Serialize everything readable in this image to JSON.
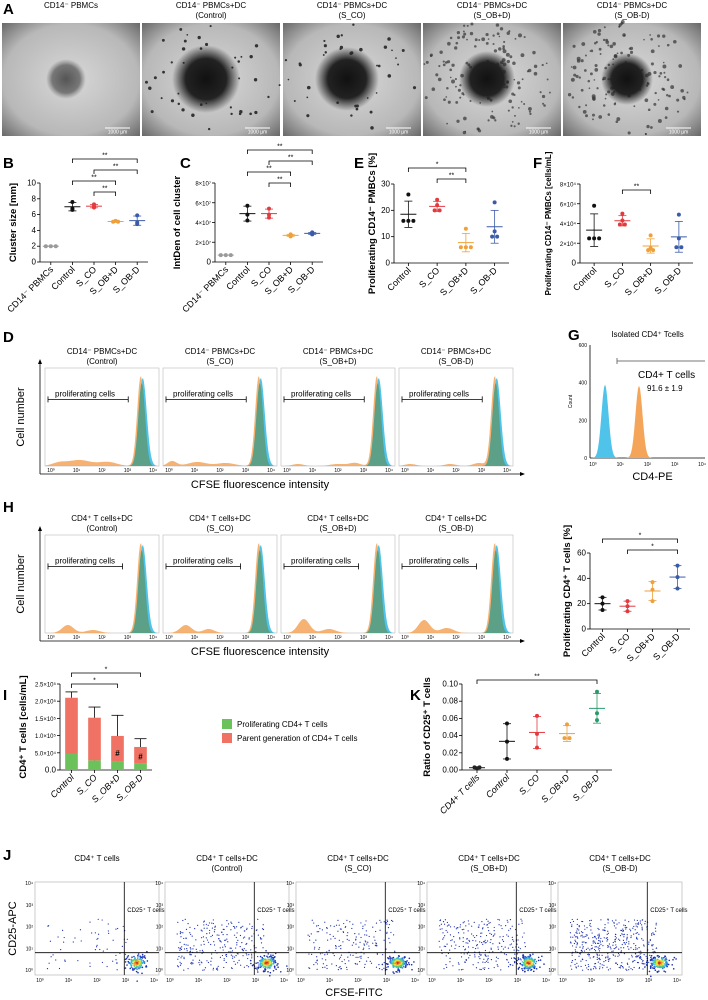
{
  "panels": {
    "A": {
      "label": "A",
      "images": [
        {
          "title": "CD14⁻ PBMCs",
          "subtitle": ""
        },
        {
          "title": "CD14⁻ PBMCs+DC",
          "subtitle": "(Control)"
        },
        {
          "title": "CD14⁻ PBMCs+DC",
          "subtitle": "(S_CO)"
        },
        {
          "title": "CD14⁻ PBMCs+DC",
          "subtitle": "(S_OB+D)"
        },
        {
          "title": "CD14⁻ PBMCs+DC",
          "subtitle": "(S_OB-D)"
        }
      ],
      "scale_bar": "1000 µm"
    },
    "D": {
      "label": "D",
      "ylabel": "Cell number",
      "xlabel": "CFSE fluorescence intensity",
      "gate_label": "proliferating cells",
      "histograms": [
        {
          "title": "CD14⁻ PBMCs+DC",
          "subtitle": "(Control)"
        },
        {
          "title": "CD14⁻ PBMCs+DC",
          "subtitle": "(S_CO)"
        },
        {
          "title": "CD14⁻ PBMCs+DC",
          "subtitle": "(S_OB+D)"
        },
        {
          "title": "CD14⁻ PBMCs+DC",
          "subtitle": "(S_OB-D)"
        }
      ]
    },
    "G": {
      "label": "G",
      "title": "Isolated CD4⁺ Tcells",
      "gate_label": "CD4+ T cells",
      "gate_value": "91.6 ± 1.9",
      "xlabel": "CD4-PE",
      "ylabel": "Count",
      "yticks": [
        "0",
        "200",
        "400",
        "600"
      ]
    },
    "H": {
      "label": "H",
      "ylabel": "Cell number",
      "xlabel": "CFSE fluorescence intensity",
      "gate_label": "proliferating cells",
      "histograms": [
        {
          "title": "CD4⁺ T cells+DC",
          "subtitle": "(Control)"
        },
        {
          "title": "CD4⁺ T cells+DC",
          "subtitle": "(S_CO)"
        },
        {
          "title": "CD4⁺ T cells+DC",
          "subtitle": "(S_OB+D)"
        },
        {
          "title": "CD4⁺ T cells+DC",
          "subtitle": "(S_OB-D)"
        }
      ]
    },
    "J": {
      "label": "J",
      "ylabel": "CD25-APC",
      "xlabel": "CFSE-FITC",
      "gate_label": "CD25⁺ T cells",
      "plots": [
        {
          "title": "CD4⁺ T cells",
          "subtitle": ""
        },
        {
          "title": "CD4⁺ T cells+DC",
          "subtitle": "(Control)"
        },
        {
          "title": "CD4⁺ T cells+DC",
          "subtitle": "(S_CO)"
        },
        {
          "title": "CD4⁺ T cells+DC",
          "subtitle": "(S_OB+D)"
        },
        {
          "title": "CD4⁺ T cells+DC",
          "subtitle": "(S_OB-D)"
        }
      ]
    },
    "log_ticks": [
      "10⁰",
      "10¹",
      "10²",
      "10³",
      "10⁴"
    ]
  },
  "colors": {
    "CD14⁻ PBMCs": "#9a9a9a",
    "CD4+ T cells": "#222222",
    "Control": "#111111",
    "S_CO": "#e23a3f",
    "S_OB+D": "#f0a03a",
    "S_OB-D": "#3b5ba8",
    "S_OB-D_K": "#2a9a6c",
    "histogram_blue": "#4fc3ea",
    "histogram_orange": "#f5a55a",
    "histogram_overlap": "#4d9e8a",
    "bar_green": "#6cc25a",
    "bar_red": "#ef7264"
  },
  "chart_data": [
    {
      "panel": "B",
      "type": "scatter",
      "ylabel": "Cluster size [mm]",
      "ylim": [
        0,
        10
      ],
      "yticks": [
        0,
        2,
        4,
        6,
        8,
        10
      ],
      "ytick_labels": [
        "0",
        "2",
        "4",
        "6",
        "8",
        "10"
      ],
      "categories": [
        "CD14⁻ PBMCs",
        "Control",
        "S_CO",
        "S_OB+D",
        "S_OB-D"
      ],
      "values": [
        [
          2,
          2,
          2
        ],
        [
          7.6,
          6.8,
          6.6
        ],
        [
          7.3,
          7.0,
          6.9
        ],
        [
          5.1,
          5.1,
          5.2
        ],
        [
          5.9,
          5.0,
          4.8
        ]
      ],
      "significance": [
        {
          "from": "Control",
          "to": "S_OB-D",
          "label": "**"
        },
        {
          "from": "S_CO",
          "to": "S_OB-D",
          "label": "**"
        },
        {
          "from": "Control",
          "to": "S_OB+D",
          "label": "**"
        },
        {
          "from": "S_CO",
          "to": "S_OB+D",
          "label": "**"
        }
      ]
    },
    {
      "panel": "C",
      "type": "scatter",
      "ylabel": "IntDen of cell cluster",
      "ylim": [
        0,
        80000000
      ],
      "yticks": [
        0,
        20000000,
        40000000,
        60000000,
        80000000
      ],
      "ytick_labels": [
        "0",
        "2×10⁷",
        "4×10⁷",
        "6×10⁷",
        "8×10⁷"
      ],
      "categories": [
        "CD14⁻ PBMCs",
        "Control",
        "S_CO",
        "S_OB+D",
        "S_OB-D"
      ],
      "values": [
        [
          7000000,
          7000000,
          7000000
        ],
        [
          57000000,
          48000000,
          42000000
        ],
        [
          54000000,
          48000000,
          45000000
        ],
        [
          28000000,
          26000000,
          27000000
        ],
        [
          30000000,
          29000000,
          28000000
        ]
      ],
      "significance": [
        {
          "from": "Control",
          "to": "S_OB-D",
          "label": "**"
        },
        {
          "from": "S_CO",
          "to": "S_OB-D",
          "label": "**"
        },
        {
          "from": "Control",
          "to": "S_OB+D",
          "label": "**"
        },
        {
          "from": "S_CO",
          "to": "S_OB+D",
          "label": "**"
        }
      ]
    },
    {
      "panel": "E",
      "type": "scatter",
      "ylabel": "Proliferating CD14⁻ PMBCs [%]",
      "ylim": [
        0,
        30
      ],
      "yticks": [
        0,
        10,
        20,
        30
      ],
      "ytick_labels": [
        "0",
        "10",
        "20",
        "30"
      ],
      "categories": [
        "Control",
        "S_CO",
        "S_OB+D",
        "S_OB-D"
      ],
      "values": [
        [
          26,
          16,
          16,
          16
        ],
        [
          24,
          22,
          20,
          20
        ],
        [
          13,
          6,
          6,
          6
        ],
        [
          23,
          12,
          10,
          10
        ]
      ],
      "significance": [
        {
          "from": "Control",
          "to": "S_OB+D",
          "label": "*"
        },
        {
          "from": "S_CO",
          "to": "S_OB+D",
          "label": "**"
        }
      ]
    },
    {
      "panel": "F",
      "type": "scatter",
      "ylabel": "Proliferating CD14⁻ PMBCs [cells/mL]",
      "ylim": [
        0,
        80000
      ],
      "yticks": [
        0,
        20000,
        40000,
        60000,
        80000
      ],
      "ytick_labels": [
        "0",
        "2×10⁴",
        "4×10⁴",
        "6×10⁴",
        "8×10⁴"
      ],
      "categories": [
        "Control",
        "S_CO",
        "S_OB+D",
        "S_OB-D"
      ],
      "values": [
        [
          58000,
          25000,
          25000,
          25000
        ],
        [
          50000,
          43000,
          39000,
          39000
        ],
        [
          28000,
          15000,
          13000,
          13000
        ],
        [
          49000,
          25000,
          16000,
          16000
        ]
      ],
      "significance": [
        {
          "from": "S_CO",
          "to": "S_OB+D",
          "label": "**"
        }
      ]
    },
    {
      "panel": "H",
      "type": "scatter",
      "ylabel": "Proliferating CD4⁺ T cells [%]",
      "ylim": [
        0,
        60
      ],
      "yticks": [
        0,
        20,
        40,
        60
      ],
      "ytick_labels": [
        "0",
        "20",
        "40",
        "60"
      ],
      "categories": [
        "Control",
        "S_CO",
        "S_OB+D",
        "S_OB-D"
      ],
      "values": [
        [
          25,
          20,
          15
        ],
        [
          22,
          18,
          14
        ],
        [
          37,
          31,
          22
        ],
        [
          50,
          41,
          32
        ]
      ],
      "significance": [
        {
          "from": "Control",
          "to": "S_OB-D",
          "label": "*"
        },
        {
          "from": "S_CO",
          "to": "S_OB-D",
          "label": "*"
        }
      ]
    },
    {
      "panel": "I",
      "type": "bar",
      "stacked": true,
      "ylabel": "CD4⁺ T cells [cells/mL]",
      "ylim": [
        0,
        250000
      ],
      "yticks": [
        0,
        50000,
        100000,
        150000,
        200000,
        250000
      ],
      "ytick_labels": [
        "0.0",
        "5.0×10⁴",
        "1.0×10⁵",
        "1.5×10⁵",
        "2.0×10⁵",
        "2.5×10⁵"
      ],
      "categories": [
        "Control",
        "S_CO",
        "S_OB+D",
        "S_OB-D"
      ],
      "series": [
        {
          "name": "Proliferating CD4+ T cells",
          "values": [
            48000,
            28000,
            25000,
            20000
          ],
          "error_top": [
            58000,
            42000,
            35000,
            24000
          ]
        },
        {
          "name": "Parent generation of CD4+ T cells",
          "values": [
            162000,
            124000,
            74000,
            47000
          ],
          "error_top": [
            227000,
            183000,
            159000,
            91000
          ]
        }
      ],
      "annotations": [
        {
          "category": "S_OB+D",
          "label": "#"
        },
        {
          "category": "S_OB-D",
          "label": "#"
        }
      ],
      "legend": "right",
      "significance": [
        {
          "from": "Control",
          "to": "S_OB-D",
          "label": "*"
        },
        {
          "from": "Control",
          "to": "S_OB+D",
          "label": "*"
        }
      ]
    },
    {
      "panel": "K",
      "type": "scatter",
      "ylabel": "Ratio of CD25⁺ T cells",
      "ylim": [
        0,
        0.1
      ],
      "yticks": [
        0,
        0.02,
        0.04,
        0.06,
        0.08,
        0.1
      ],
      "ytick_labels": [
        "0.00",
        "0.02",
        "0.04",
        "0.06",
        "0.08",
        "0.10"
      ],
      "categories": [
        "CD4+ T cells",
        "Control",
        "S_CO",
        "S_OB+D",
        "S_OB-D"
      ],
      "values": [
        [
          0.003,
          0.002,
          0.003
        ],
        [
          0.054,
          0.033,
          0.013
        ],
        [
          0.063,
          0.042,
          0.026
        ],
        [
          0.053,
          0.037,
          0.037
        ],
        [
          0.091,
          0.066,
          0.058
        ]
      ],
      "significance": [
        {
          "from": "CD4+ T cells",
          "to": "S_OB-D",
          "label": "**"
        }
      ]
    }
  ]
}
